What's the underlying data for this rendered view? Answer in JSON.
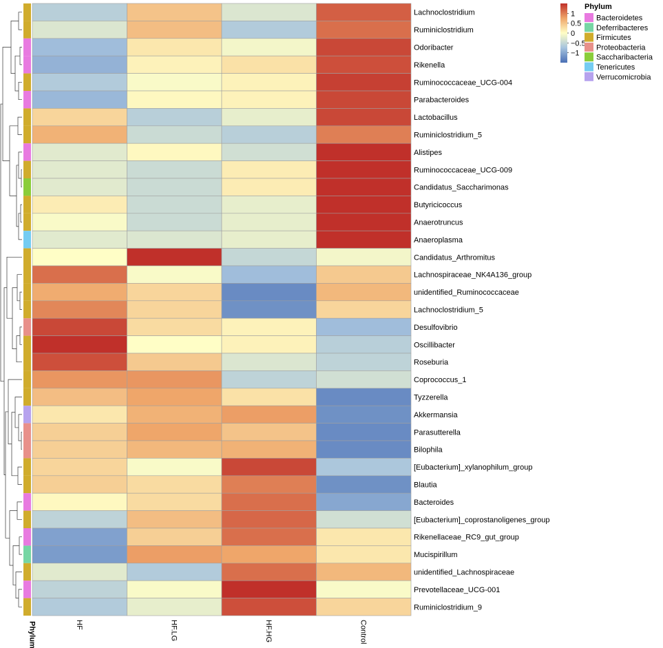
{
  "chart_data": {
    "type": "heatmap",
    "columns": [
      "HF",
      "HF.LG",
      "HF.HG",
      "Control"
    ],
    "annotation_label": "Phylum",
    "rows": [
      {
        "label": "Lachnoclostridium",
        "phylum": "Firmicutes",
        "values": [
          -0.6,
          0.5,
          -0.3,
          1.2
        ]
      },
      {
        "label": "Ruminiclostridium",
        "phylum": "Firmicutes",
        "values": [
          -0.3,
          0.55,
          -0.65,
          1.1
        ]
      },
      {
        "label": "Odoribacter",
        "phylum": "Bacteroidetes",
        "values": [
          -0.8,
          0.2,
          -0.1,
          1.35
        ]
      },
      {
        "label": "Rikenella",
        "phylum": "Bacteroidetes",
        "values": [
          -0.9,
          0.1,
          0.25,
          1.3
        ]
      },
      {
        "label": "Ruminococcaceae_UCG-004",
        "phylum": "Firmicutes",
        "values": [
          -0.65,
          -0.05,
          0.1,
          1.4
        ]
      },
      {
        "label": "Parabacteroides",
        "phylum": "Bacteroidetes",
        "values": [
          -0.85,
          0.05,
          0.1,
          1.35
        ]
      },
      {
        "label": "Lactobacillus",
        "phylum": "Firmicutes",
        "values": [
          0.35,
          -0.6,
          -0.2,
          1.35
        ]
      },
      {
        "label": "Ruminiclostridium_5",
        "phylum": "Firmicutes",
        "values": [
          0.65,
          -0.45,
          -0.6,
          1.0
        ]
      },
      {
        "label": "Alistipes",
        "phylum": "Bacteroidetes",
        "values": [
          -0.25,
          0.05,
          -0.4,
          1.5
        ]
      },
      {
        "label": "Ruminococcaceae_UCG-009",
        "phylum": "Firmicutes",
        "values": [
          -0.25,
          -0.45,
          0.15,
          1.5
        ]
      },
      {
        "label": "Candidatus_Saccharimonas",
        "phylum": "Saccharibacteria",
        "values": [
          -0.25,
          -0.45,
          0.15,
          1.5
        ]
      },
      {
        "label": "Butyricicoccus",
        "phylum": "Firmicutes",
        "values": [
          0.15,
          -0.45,
          -0.2,
          1.5
        ]
      },
      {
        "label": "Anaerotruncus",
        "phylum": "Firmicutes",
        "values": [
          -0.05,
          -0.45,
          -0.2,
          1.5
        ]
      },
      {
        "label": "Anaeroplasma",
        "phylum": "Tenericutes",
        "values": [
          -0.25,
          -0.3,
          -0.2,
          1.5
        ]
      },
      {
        "label": "Candidatus_Arthromitus",
        "phylum": "Firmicutes",
        "values": [
          0.0,
          1.5,
          -0.5,
          -0.1
        ]
      },
      {
        "label": "Lachnospiraceae_NK4A136_group",
        "phylum": "Firmicutes",
        "values": [
          1.1,
          -0.05,
          -0.8,
          0.45
        ]
      },
      {
        "label": "unidentified_Ruminococcaceae",
        "phylum": "Firmicutes",
        "values": [
          0.7,
          0.35,
          -1.25,
          0.6
        ]
      },
      {
        "label": "Lachnoclostridium_5",
        "phylum": "Firmicutes",
        "values": [
          0.95,
          0.35,
          -1.2,
          0.35
        ]
      },
      {
        "label": "Desulfovibrio",
        "phylum": "Proteobacteria",
        "values": [
          1.35,
          0.3,
          0.1,
          -0.8
        ]
      },
      {
        "label": "Oscillibacter",
        "phylum": "Firmicutes",
        "values": [
          1.5,
          0.0,
          0.1,
          -0.6
        ]
      },
      {
        "label": "Roseburia",
        "phylum": "Firmicutes",
        "values": [
          1.3,
          0.45,
          -0.3,
          -0.55
        ]
      },
      {
        "label": "Coprococcus_1",
        "phylum": "Firmicutes",
        "values": [
          0.85,
          0.85,
          -0.55,
          -0.4
        ]
      },
      {
        "label": "Tyzzerella",
        "phylum": "Firmicutes",
        "values": [
          0.55,
          0.75,
          0.25,
          -1.25
        ]
      },
      {
        "label": "Akkermansia",
        "phylum": "Verrucomicrobia",
        "values": [
          0.2,
          0.65,
          0.8,
          -1.2
        ]
      },
      {
        "label": "Parasutterella",
        "phylum": "Proteobacteria",
        "values": [
          0.4,
          0.75,
          0.5,
          -1.25
        ]
      },
      {
        "label": "Bilophila",
        "phylum": "Proteobacteria",
        "values": [
          0.4,
          0.6,
          0.65,
          -1.25
        ]
      },
      {
        "label": "[Eubacterium]_xylanophilum_group",
        "phylum": "Firmicutes",
        "values": [
          0.35,
          -0.05,
          1.35,
          -0.7
        ]
      },
      {
        "label": "Blautia",
        "phylum": "Firmicutes",
        "values": [
          0.4,
          0.3,
          1.0,
          -1.2
        ]
      },
      {
        "label": "Bacteroides",
        "phylum": "Bacteroidetes",
        "values": [
          0.05,
          0.3,
          1.1,
          -1.0
        ]
      },
      {
        "label": "[Eubacterium]_coprostanoligenes_group",
        "phylum": "Firmicutes",
        "values": [
          -0.55,
          0.55,
          1.15,
          -0.4
        ]
      },
      {
        "label": "Rikenellaceae_RC9_gut_group",
        "phylum": "Bacteroidetes",
        "values": [
          -1.05,
          0.4,
          1.1,
          0.2
        ]
      },
      {
        "label": "Mucispirillum",
        "phylum": "Deferribacteres",
        "values": [
          -1.1,
          0.8,
          0.75,
          0.2
        ]
      },
      {
        "label": "unidentified_Lachnospiraceae",
        "phylum": "Firmicutes",
        "values": [
          -0.25,
          -0.65,
          1.1,
          0.6
        ]
      },
      {
        "label": "Prevotellaceae_UCG-001",
        "phylum": "Bacteroidetes",
        "values": [
          -0.55,
          -0.05,
          1.5,
          -0.05
        ]
      },
      {
        "label": "Ruminiclostridium_9",
        "phylum": "Firmicutes",
        "values": [
          -0.65,
          -0.2,
          1.3,
          0.35
        ]
      }
    ],
    "color_scale": {
      "min": -1.5,
      "max": 1.5,
      "stops": [
        {
          "value": -1.5,
          "color": "#4A6FB5"
        },
        {
          "value": -0.75,
          "color": "#A6C3DE"
        },
        {
          "value": 0,
          "color": "#FFFEC6"
        },
        {
          "value": 0.75,
          "color": "#EFA66A"
        },
        {
          "value": 1.5,
          "color": "#C0302A"
        }
      ],
      "ticks": [
        {
          "value": 1,
          "label": "1"
        },
        {
          "value": 0.5,
          "label": "0.5"
        },
        {
          "value": 0,
          "label": "0"
        },
        {
          "value": -0.5,
          "label": "−0.5"
        },
        {
          "value": -1,
          "label": "−1"
        }
      ]
    },
    "legend": {
      "title": "Phylum",
      "entries": [
        {
          "name": "Bacteroidetes",
          "color": "#E87AE0"
        },
        {
          "name": "Deferribacteres",
          "color": "#76D6A4"
        },
        {
          "name": "Firmicutes",
          "color": "#D0AC2C"
        },
        {
          "name": "Proteobacteria",
          "color": "#E8908A"
        },
        {
          "name": "Saccharibacteria",
          "color": "#8ACD3A"
        },
        {
          "name": "Tenericutes",
          "color": "#74CCF2"
        },
        {
          "name": "Verrucomicrobia",
          "color": "#B6A2EE"
        }
      ]
    }
  }
}
